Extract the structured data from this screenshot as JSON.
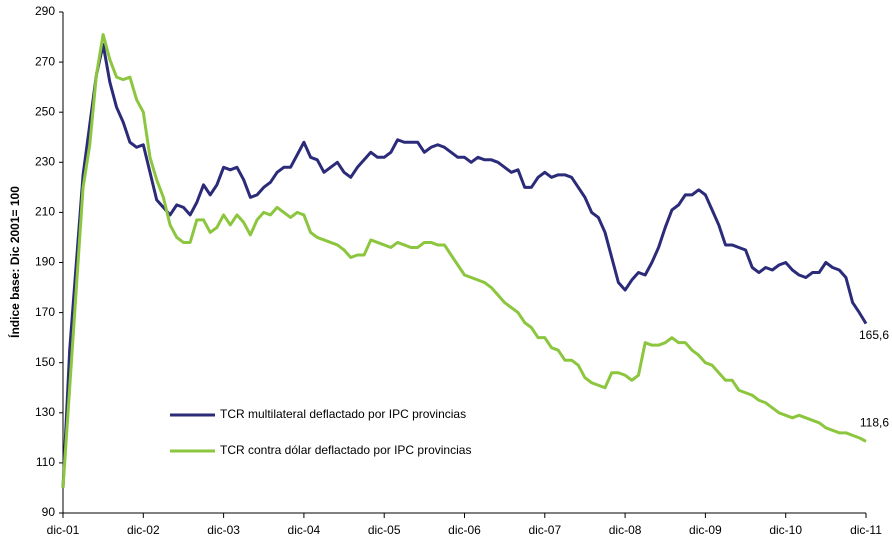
{
  "chart_data": {
    "type": "line",
    "y_label": "Índice base: Dic 2001= 100",
    "categories": [
      "dic-01",
      null,
      null,
      null,
      null,
      null,
      null,
      null,
      null,
      null,
      null,
      null,
      "dic-02",
      null,
      null,
      null,
      null,
      null,
      null,
      null,
      null,
      null,
      null,
      null,
      "dic-03",
      null,
      null,
      null,
      null,
      null,
      null,
      null,
      null,
      null,
      null,
      null,
      "dic-04",
      null,
      null,
      null,
      null,
      null,
      null,
      null,
      null,
      null,
      null,
      null,
      "dic-05",
      null,
      null,
      null,
      null,
      null,
      null,
      null,
      null,
      null,
      null,
      null,
      "dic-06",
      null,
      null,
      null,
      null,
      null,
      null,
      null,
      null,
      null,
      null,
      null,
      "dic-07",
      null,
      null,
      null,
      null,
      null,
      null,
      null,
      null,
      null,
      null,
      null,
      "dic-08",
      null,
      null,
      null,
      null,
      null,
      null,
      null,
      null,
      null,
      null,
      null,
      "dic-09",
      null,
      null,
      null,
      null,
      null,
      null,
      null,
      null,
      null,
      null,
      null,
      "dic-10",
      null,
      null,
      null,
      null,
      null,
      null,
      null,
      null,
      null,
      null,
      null,
      "dic-11"
    ],
    "series": [
      {
        "name": "TCR multilateral deflactado por IPC provincias",
        "color": "#2b2b7a",
        "values": [
          100,
          155,
          190,
          225,
          245,
          265,
          277,
          262,
          252,
          246,
          238,
          236,
          237,
          226,
          215,
          212,
          209,
          213,
          212,
          209,
          214,
          221,
          217,
          221,
          228,
          227,
          228,
          223,
          216,
          217,
          220,
          222,
          226,
          228,
          228,
          233,
          238,
          232,
          231,
          226,
          228,
          230,
          226,
          224,
          228,
          231,
          234,
          232,
          232,
          234,
          239,
          238,
          238,
          238,
          234,
          236,
          237,
          236,
          234,
          232,
          232,
          230,
          232,
          231,
          231,
          230,
          228,
          226,
          227,
          220,
          220,
          224,
          226,
          224,
          225,
          225,
          224,
          220,
          216,
          210,
          208,
          202,
          192,
          182,
          179,
          183,
          186,
          185,
          190,
          196,
          204,
          211,
          213,
          217,
          217,
          219,
          217,
          211,
          205,
          197,
          197,
          196,
          195,
          188,
          186,
          188,
          187,
          189,
          190,
          187,
          185,
          184,
          186,
          186,
          190,
          188,
          187,
          184,
          174,
          170,
          165.6
        ],
        "value_labels": [
          null,
          null,
          null,
          null,
          null,
          null,
          null,
          null,
          null,
          null,
          null,
          null,
          null,
          null,
          null,
          null,
          null,
          null,
          null,
          null,
          null,
          null,
          null,
          null,
          null,
          null,
          null,
          null,
          null,
          null,
          null,
          null,
          null,
          null,
          null,
          null,
          null,
          null,
          null,
          null,
          null,
          null,
          null,
          null,
          null,
          null,
          null,
          null,
          null,
          null,
          null,
          null,
          null,
          null,
          null,
          null,
          null,
          null,
          null,
          null,
          null,
          null,
          null,
          null,
          null,
          null,
          null,
          null,
          null,
          null,
          null,
          null,
          null,
          null,
          null,
          null,
          null,
          null,
          null,
          null,
          null,
          null,
          null,
          null,
          null,
          null,
          null,
          null,
          null,
          null,
          null,
          null,
          null,
          null,
          null,
          null,
          null,
          null,
          null,
          null,
          null,
          null,
          null,
          null,
          null,
          null,
          null,
          null,
          null,
          null,
          null,
          null,
          null,
          null,
          null,
          null,
          null,
          null,
          null,
          null,
          "165,6"
        ]
      },
      {
        "name": "TCR contra dólar deflactado por IPC provincias",
        "color": "#8cc63f",
        "values": [
          100,
          140,
          180,
          220,
          237,
          265,
          281,
          271,
          264,
          263,
          264,
          255,
          250,
          232,
          223,
          216,
          205,
          200,
          198,
          198,
          207,
          207,
          202,
          204,
          209,
          205,
          209,
          206,
          201,
          207,
          210,
          209,
          212,
          210,
          208,
          210,
          209,
          202,
          200,
          199,
          198,
          197,
          195,
          192,
          193,
          193,
          199,
          198,
          197,
          196,
          198,
          197,
          196,
          196,
          198,
          198,
          197,
          197,
          193,
          189,
          185,
          184,
          183,
          182,
          180,
          177,
          174,
          172,
          170,
          166,
          164,
          160,
          160,
          156,
          155,
          151,
          151,
          149,
          144,
          142,
          141,
          140,
          146,
          146,
          145,
          143,
          145,
          158,
          157,
          157,
          158,
          160,
          158,
          158,
          155,
          153,
          150,
          149,
          146,
          143,
          143,
          139,
          138,
          137,
          135,
          134,
          132,
          130,
          129,
          128,
          129,
          128,
          127,
          126,
          124,
          123,
          122,
          122,
          121,
          120,
          118.6
        ],
        "value_labels": [
          null,
          null,
          null,
          null,
          null,
          null,
          null,
          null,
          null,
          null,
          null,
          null,
          null,
          null,
          null,
          null,
          null,
          null,
          null,
          null,
          null,
          null,
          null,
          null,
          null,
          null,
          null,
          null,
          null,
          null,
          null,
          null,
          null,
          null,
          null,
          null,
          null,
          null,
          null,
          null,
          null,
          null,
          null,
          null,
          null,
          null,
          null,
          null,
          null,
          null,
          null,
          null,
          null,
          null,
          null,
          null,
          null,
          null,
          null,
          null,
          null,
          null,
          null,
          null,
          null,
          null,
          null,
          null,
          null,
          null,
          null,
          null,
          null,
          null,
          null,
          null,
          null,
          null,
          null,
          null,
          null,
          null,
          null,
          null,
          null,
          null,
          null,
          null,
          null,
          null,
          null,
          null,
          null,
          null,
          null,
          null,
          null,
          null,
          null,
          null,
          null,
          null,
          null,
          null,
          null,
          null,
          null,
          null,
          null,
          null,
          null,
          null,
          null,
          null,
          null,
          null,
          null,
          null,
          null,
          null,
          "118,6"
        ]
      }
    ],
    "ylim": [
      90,
      290
    ],
    "yticks": [
      90,
      110,
      130,
      150,
      170,
      190,
      210,
      230,
      250,
      270,
      290
    ],
    "grid": false,
    "legend": "lower-left"
  }
}
